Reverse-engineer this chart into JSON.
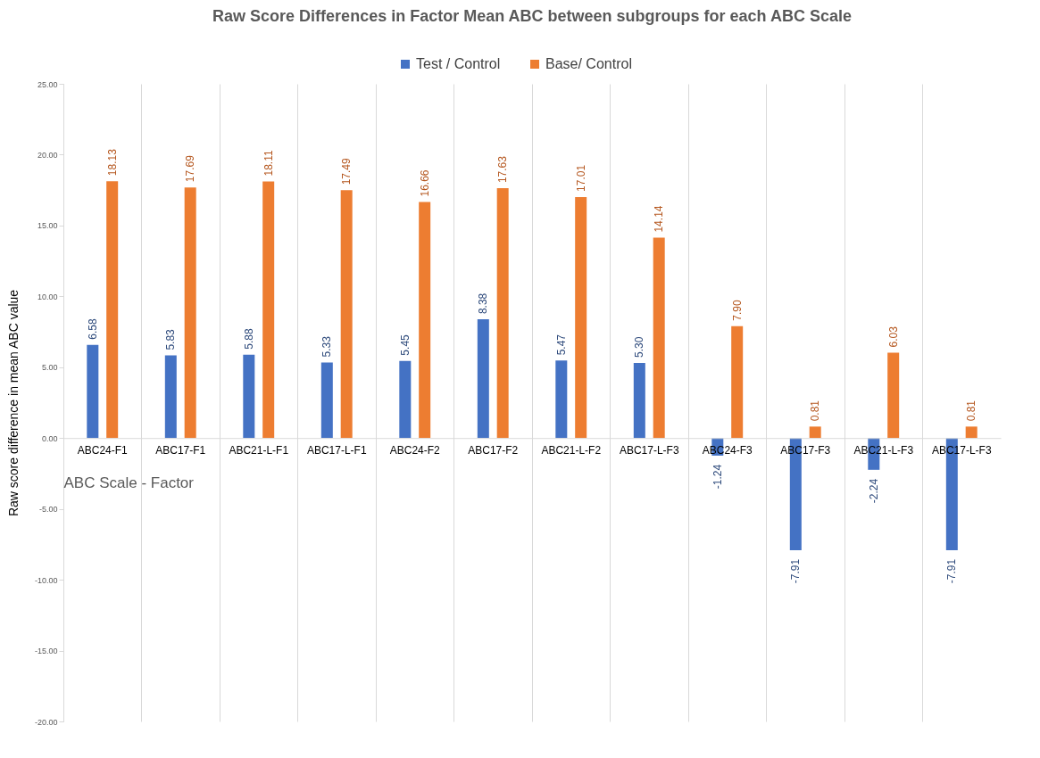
{
  "chart_data": {
    "type": "bar",
    "title": "Raw Score Differences in Factor Mean ABC between subgroups for each ABC Scale",
    "xlabel": "ABC Scale - Factor",
    "ylabel": "Raw score difference in mean ABC value",
    "categories": [
      "ABC24-F1",
      "ABC17-F1",
      "ABC21-L-F1",
      "ABC17-L-F1",
      "ABC24-F2",
      "ABC17-F2",
      "ABC21-L-F2",
      "ABC17-L-F3",
      "ABC24-F3",
      "ABC17-F3",
      "ABC21-L-F3",
      "ABC17-L-F3"
    ],
    "series": [
      {
        "name": "Test / Control",
        "color": "#4472c4",
        "values": [
          6.58,
          5.83,
          5.88,
          5.33,
          5.45,
          8.38,
          5.47,
          5.3,
          -1.24,
          -7.91,
          -2.24,
          -7.91
        ],
        "value_labels": [
          "6.58",
          "5.83",
          "5.88",
          "5.33",
          "5.45",
          "8.38",
          "5.47",
          "5.30",
          "-1.24",
          "-7.91",
          "-2.24",
          "-7.91"
        ]
      },
      {
        "name": "Base/ Control",
        "color": "#ed7d31",
        "values": [
          18.13,
          17.69,
          18.11,
          17.49,
          16.66,
          17.63,
          17.01,
          14.14,
          7.9,
          0.81,
          6.03,
          0.81
        ],
        "value_labels": [
          "18.13",
          "17.69",
          "18.11",
          "17.49",
          "16.66",
          "17.63",
          "17.01",
          "14.14",
          "7.90",
          "0.81",
          "6.03",
          "0.81"
        ]
      }
    ],
    "ylim": [
      -20,
      25
    ],
    "yticks": [
      {
        "value": -20,
        "label": "-20.00"
      },
      {
        "value": -15,
        "label": "-15.00"
      },
      {
        "value": -10,
        "label": "-10.00"
      },
      {
        "value": -5,
        "label": "-5.00"
      },
      {
        "value": 0,
        "label": "0.00"
      },
      {
        "value": 5,
        "label": "5.00"
      },
      {
        "value": 10,
        "label": "10.00"
      },
      {
        "value": 15,
        "label": "15.00"
      },
      {
        "value": 20,
        "label": "20.00"
      },
      {
        "value": 25,
        "label": "25.00"
      }
    ],
    "grid": "x",
    "legend": "top"
  }
}
